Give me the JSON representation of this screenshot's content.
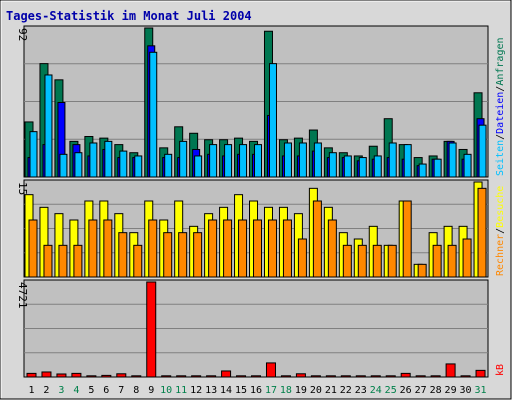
{
  "title": "Tages-Statistik im Monat Juli 2004",
  "colors": {
    "frame_bg": "#d8d8d8",
    "plot_bg": "#c0c0c0",
    "border_dark": "#808080",
    "title": "#0000aa",
    "hits": "#007751",
    "files": "#0000ff",
    "pages": "#00c0ff",
    "visits": "#ffff00",
    "sites": "#ff8800",
    "kbytes": "#ff0000",
    "weekend_label": "#00804a",
    "weekday_label": "#000000"
  },
  "legend": {
    "top": [
      "Anfragen",
      "Dateien",
      "Seiten"
    ],
    "middle": [
      "Besuche",
      "Rechner"
    ],
    "bottom": [
      "kB"
    ]
  },
  "chart_data": {
    "type": "bar",
    "title": "Tages-Statistik im Monat Juli 2004",
    "categories": [
      "1",
      "2",
      "3",
      "4",
      "5",
      "6",
      "7",
      "8",
      "9",
      "10",
      "11",
      "12",
      "13",
      "14",
      "15",
      "16",
      "17",
      "18",
      "19",
      "20",
      "21",
      "22",
      "23",
      "24",
      "25",
      "26",
      "27",
      "28",
      "29",
      "30",
      "31"
    ],
    "weekend_days": [
      "3",
      "4",
      "10",
      "11",
      "17",
      "18",
      "24",
      "25",
      "31"
    ],
    "panels": [
      {
        "id": "top",
        "max_label": "92",
        "ylim": [
          0,
          92
        ],
        "series": [
          {
            "name": "Anfragen",
            "values": [
              34,
              70,
              60,
              22,
              25,
              24,
              20,
              15,
              92,
              18,
              31,
              27,
              23,
              23,
              24,
              22,
              90,
              23,
              24,
              29,
              18,
              15,
              13,
              19,
              36,
              20,
              12,
              13,
              22,
              17,
              52
            ]
          },
          {
            "name": "Dateien",
            "values": [
              12,
              20,
              46,
              20,
              13,
              17,
              12,
              12,
              81,
              12,
              12,
              17,
              14,
              13,
              14,
              14,
              38,
              13,
              13,
              16,
              12,
              12,
              10,
              11,
              12,
              11,
              7,
              11,
              22,
              11,
              36
            ]
          },
          {
            "name": "Seiten",
            "values": [
              28,
              63,
              14,
              15,
              21,
              22,
              16,
              13,
              77,
              14,
              22,
              13,
              20,
              20,
              20,
              20,
              70,
              21,
              21,
              21,
              15,
              13,
              12,
              13,
              21,
              20,
              8,
              11,
              21,
              14,
              32
            ]
          }
        ]
      },
      {
        "id": "middle",
        "max_label": "15",
        "ylim": [
          0,
          15
        ],
        "series": [
          {
            "name": "Besuche",
            "values": [
              13,
              11,
              10,
              9,
              12,
              12,
              10,
              7,
              12,
              9,
              12,
              8,
              10,
              11,
              13,
              12,
              11,
              11,
              10,
              14,
              11,
              7,
              6,
              8,
              5,
              12,
              2,
              7,
              8,
              8,
              15
            ]
          },
          {
            "name": "Rechner",
            "values": [
              9,
              5,
              5,
              5,
              9,
              9,
              7,
              5,
              9,
              7,
              7,
              7,
              9,
              9,
              9,
              9,
              9,
              9,
              6,
              12,
              9,
              5,
              5,
              5,
              5,
              12,
              2,
              5,
              5,
              6,
              14
            ]
          }
        ]
      },
      {
        "id": "bottom",
        "max_label": "4721",
        "ylim": [
          0,
          4721
        ],
        "series": [
          {
            "name": "kB",
            "values": [
              180,
              250,
              150,
              180,
              60,
              80,
              160,
              60,
              4721,
              60,
              60,
              60,
              60,
              300,
              60,
              60,
              700,
              60,
              160,
              60,
              60,
              60,
              60,
              60,
              60,
              180,
              60,
              60,
              650,
              60,
              330
            ]
          }
        ]
      }
    ]
  }
}
